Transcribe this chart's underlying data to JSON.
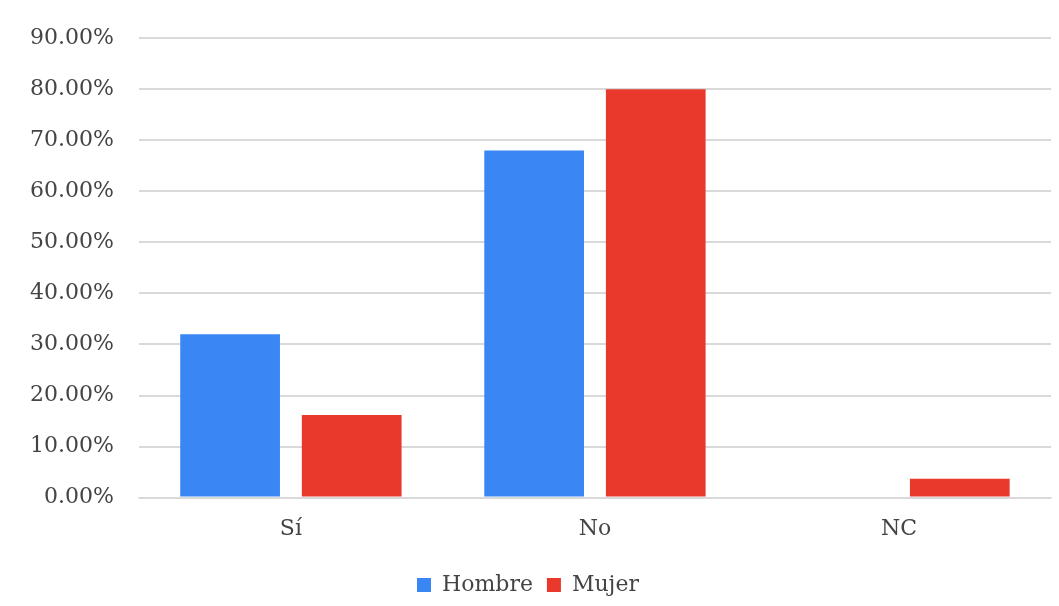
{
  "chart_data": {
    "type": "bar",
    "categories": [
      "Sí",
      "No",
      "NC"
    ],
    "series": [
      {
        "name": "Hombre",
        "color": "#3a86f5",
        "values": [
          32,
          68,
          0
        ]
      },
      {
        "name": "Mujer",
        "color": "#e8392c",
        "values": [
          16.2,
          80,
          3.7
        ]
      }
    ],
    "ylim": [
      0,
      90
    ],
    "yticks": [
      {
        "value": 0,
        "label": "0.00%"
      },
      {
        "value": 10,
        "label": "10.00%"
      },
      {
        "value": 20,
        "label": "20.00%"
      },
      {
        "value": 30,
        "label": "30.00%"
      },
      {
        "value": 40,
        "label": "40.00%"
      },
      {
        "value": 50,
        "label": "50.00%"
      },
      {
        "value": 60,
        "label": "60.00%"
      },
      {
        "value": 70,
        "label": "70.00%"
      },
      {
        "value": 80,
        "label": "80.00%"
      },
      {
        "value": 90,
        "label": "90.00%"
      }
    ],
    "grid": "y",
    "legend": "bottom"
  }
}
